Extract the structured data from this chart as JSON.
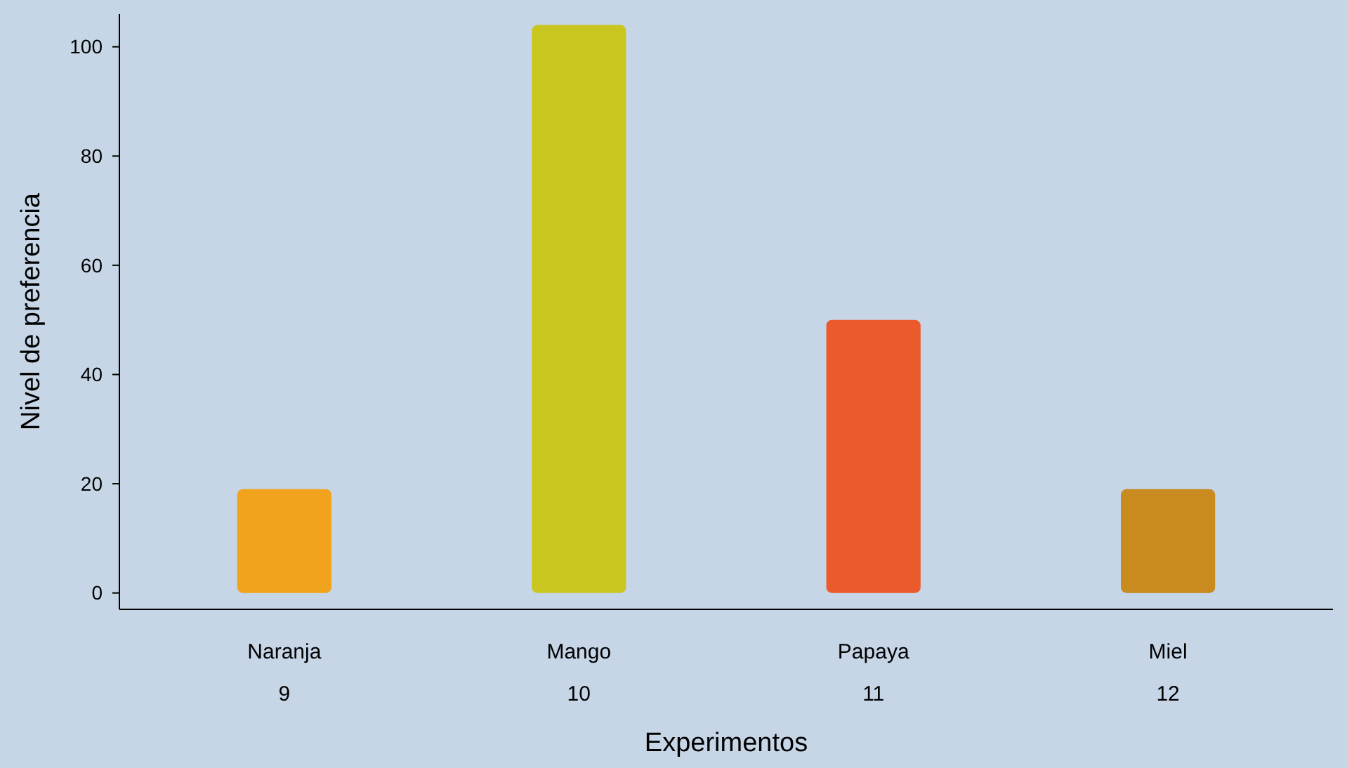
{
  "chart_data": {
    "type": "bar",
    "xlabel": "Experimentos",
    "ylabel": "Nivel de preferencia",
    "categories": [
      "Naranja\n9",
      "Mango\n10",
      "Papaya\n11",
      "Miel\n12"
    ],
    "values": [
      19,
      104,
      50,
      19
    ],
    "colors": [
      "#f2a31e",
      "#c9c620",
      "#ea5a2c",
      "#c98a1f"
    ],
    "ylim": [
      -3,
      106
    ],
    "yticks": [
      0,
      20,
      40,
      60,
      80,
      100
    ],
    "grid": false
  }
}
